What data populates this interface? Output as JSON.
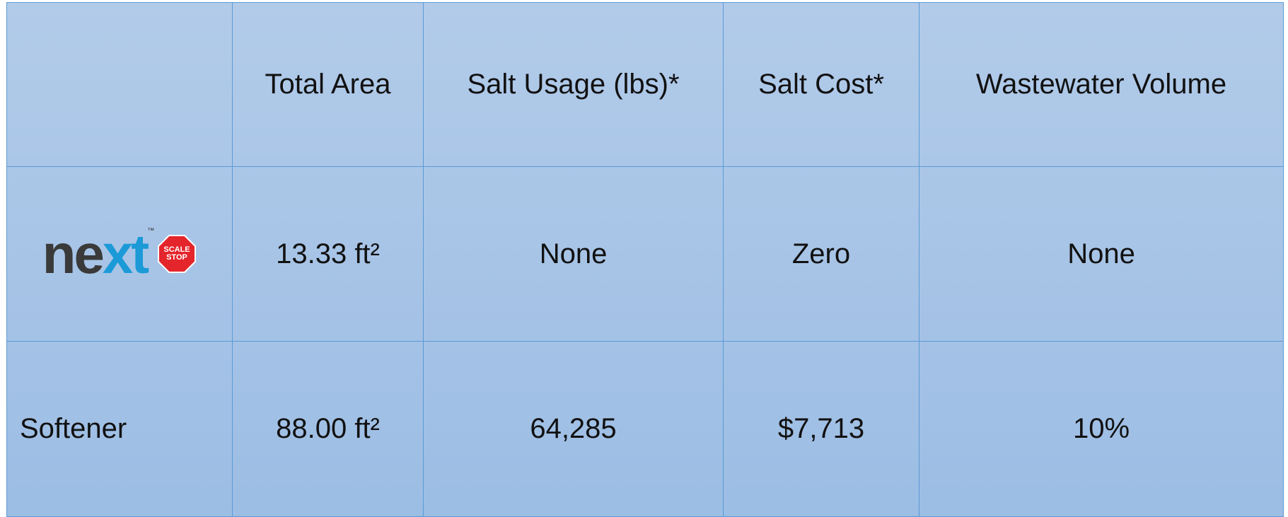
{
  "table": {
    "header": [
      "Total Area",
      "Salt Usage (lbs)*",
      "Salt Cost*",
      "Wastewater Volume"
    ],
    "rows": [
      {
        "logo": {
          "parts": [
            "ne",
            "xt"
          ],
          "tm": "™",
          "badge": [
            "SCALE",
            "STOP"
          ]
        },
        "cells": [
          "13.33 ft²",
          "None",
          "Zero",
          "None"
        ]
      },
      {
        "label": "Softener",
        "cells": [
          "88.00 ft²",
          "64,285",
          "$7,713",
          "10%"
        ]
      }
    ]
  }
}
